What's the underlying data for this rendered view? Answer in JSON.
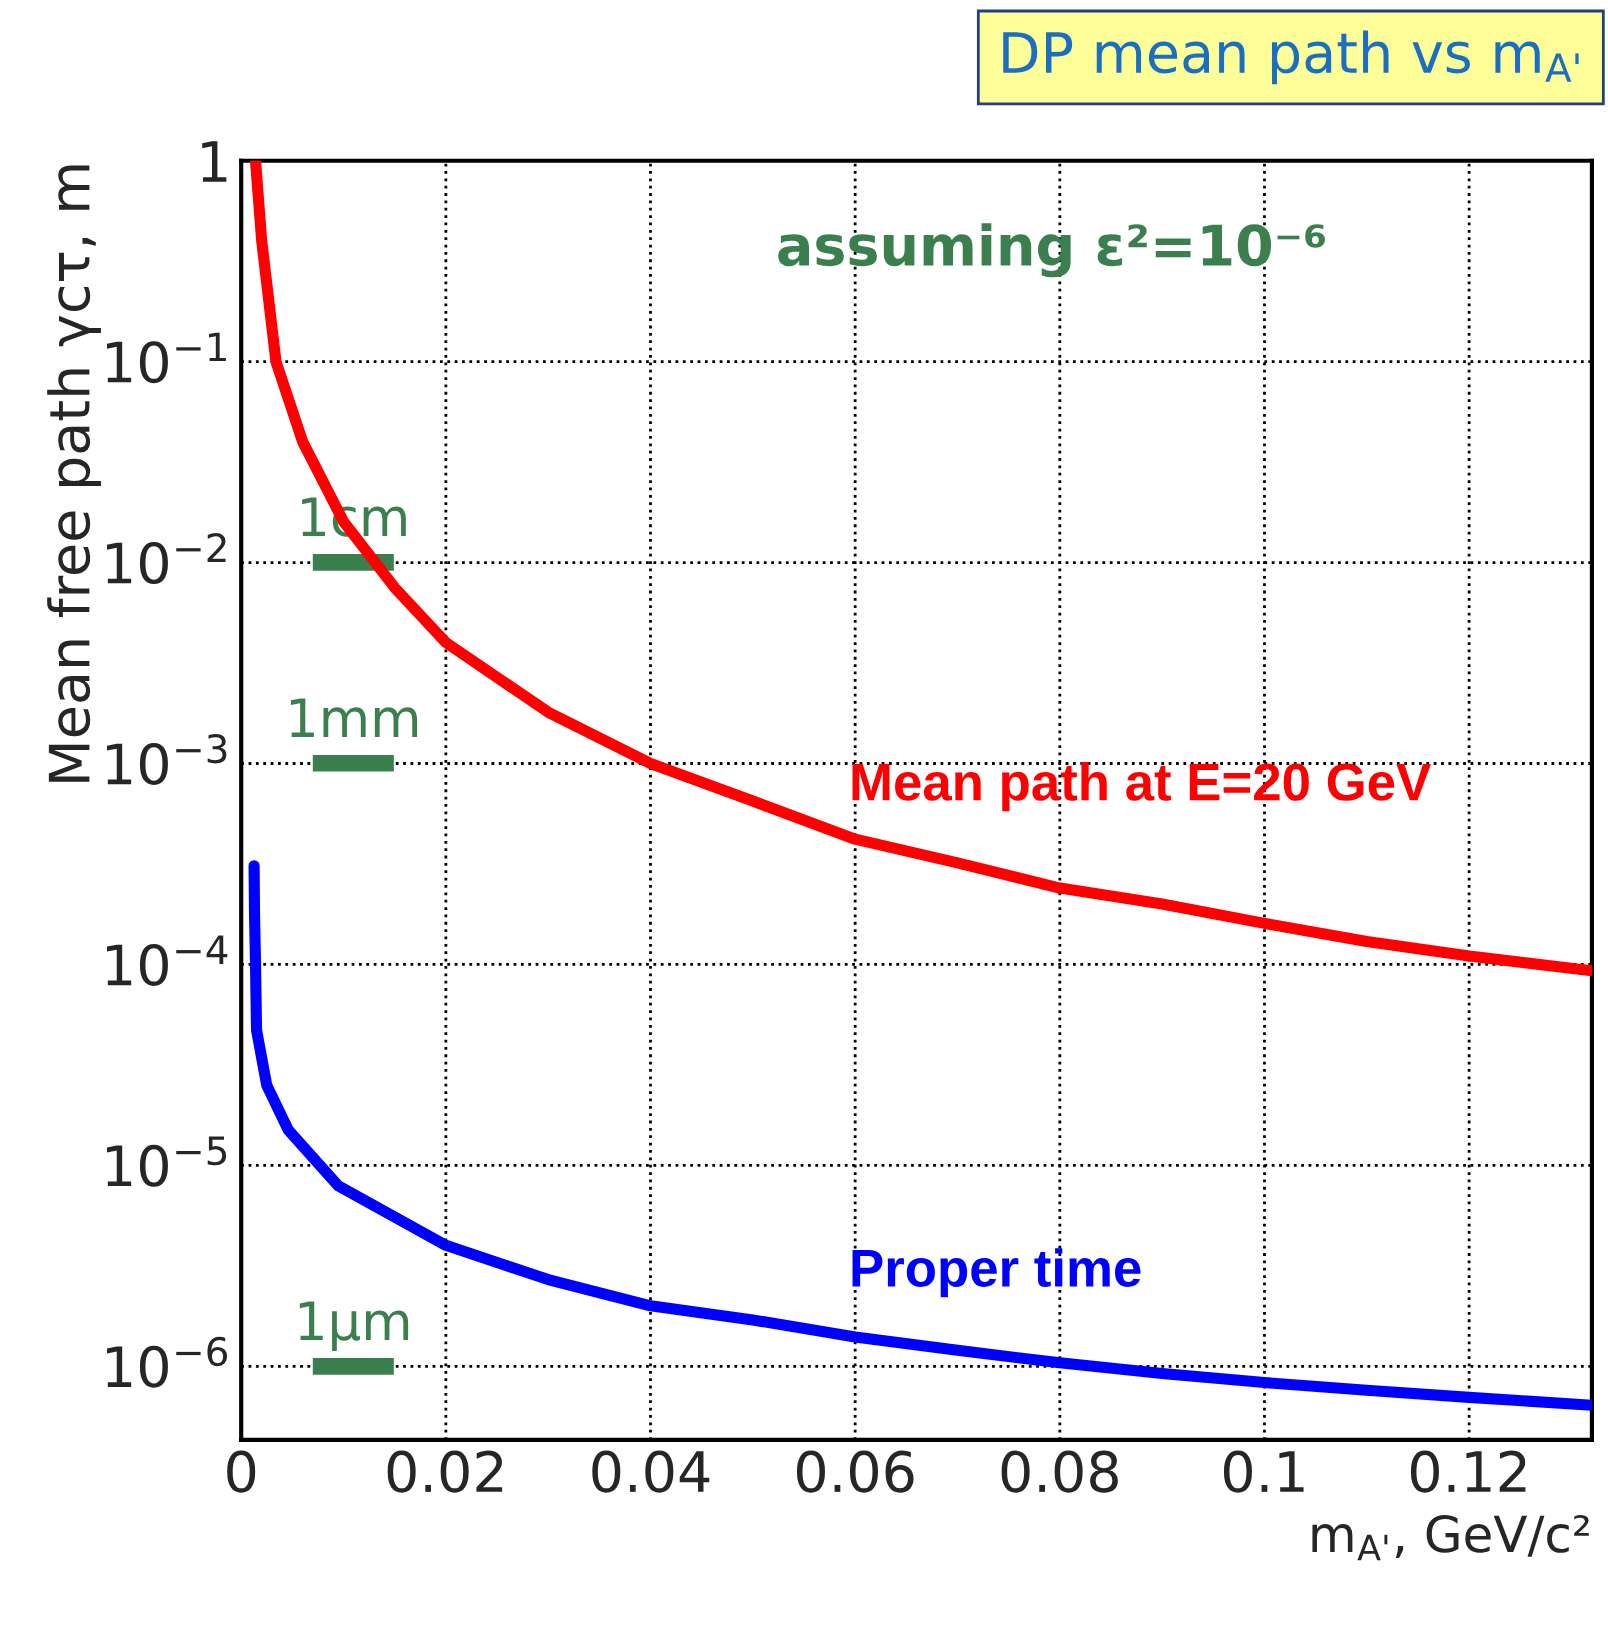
{
  "chart_data": {
    "type": "line",
    "title": "DP mean path vs m$_{A'}$",
    "xlabel": "m$_{A'}$, GeV/c²",
    "ylabel": "Mean free path γcτ, m",
    "log": "y",
    "grid": true,
    "legend": false,
    "line_style": "solid",
    "marker": "none",
    "xlim": [
      0,
      0.132
    ],
    "xticks": [
      0,
      0.02,
      0.04,
      0.06,
      0.08,
      0.1,
      0.12
    ],
    "ylim": [
      4.3e-07,
      1
    ],
    "yticks": [
      1,
      {
        "value": 0.1,
        "label": "10$^{−1}$"
      },
      {
        "value": 0.01,
        "label": "10$^{−2}$"
      },
      {
        "value": 0.001,
        "label": "10$^{−3}$"
      },
      {
        "value": 0.0001,
        "label": "10$^{−4}$"
      },
      {
        "value": 1e-05,
        "label": "10$^{−5}$"
      },
      {
        "value": 1e-06,
        "label": "10$^{−6}$"
      }
    ],
    "series": [
      {
        "name": "Mean path at E=20 GeV",
        "color": "#ff0000",
        "x": [
          0.0014,
          0.002,
          0.0034,
          0.006,
          0.01,
          0.015,
          0.02,
          0.03,
          0.04,
          0.05,
          0.06,
          0.07,
          0.08,
          0.09,
          0.1,
          0.11,
          0.12,
          0.132
        ],
        "values": [
          1,
          0.4,
          0.1,
          0.04,
          0.016,
          0.0075,
          0.004,
          0.0018,
          0.001,
          0.00065,
          0.00042,
          0.00032,
          0.00024,
          0.0002,
          0.00016,
          0.00013,
          0.00011,
          9.3e-05
        ]
      },
      {
        "name": "Proper time",
        "color": "#0000ff",
        "x": [
          0.00126,
          0.0013,
          0.0014,
          0.0015,
          0.0025,
          0.0046,
          0.0095,
          0.02,
          0.03,
          0.04,
          0.05,
          0.06,
          0.07,
          0.08,
          0.09,
          0.1,
          0.11,
          0.12,
          0.132
        ],
        "values": [
          0.00031,
          0.00018,
          0.0001,
          4.7e-05,
          2.5e-05,
          1.5e-05,
          7.9e-06,
          4e-06,
          2.7e-06,
          2e-06,
          1.7e-06,
          1.4e-06,
          1.2e-06,
          1.04e-06,
          9.2e-07,
          8.3e-07,
          7.6e-07,
          7e-07,
          6.4e-07
        ]
      }
    ],
    "annotations": [
      "assuming ε²=10⁻⁶",
      "1cm",
      "1mm",
      "1μm"
    ]
  }
}
